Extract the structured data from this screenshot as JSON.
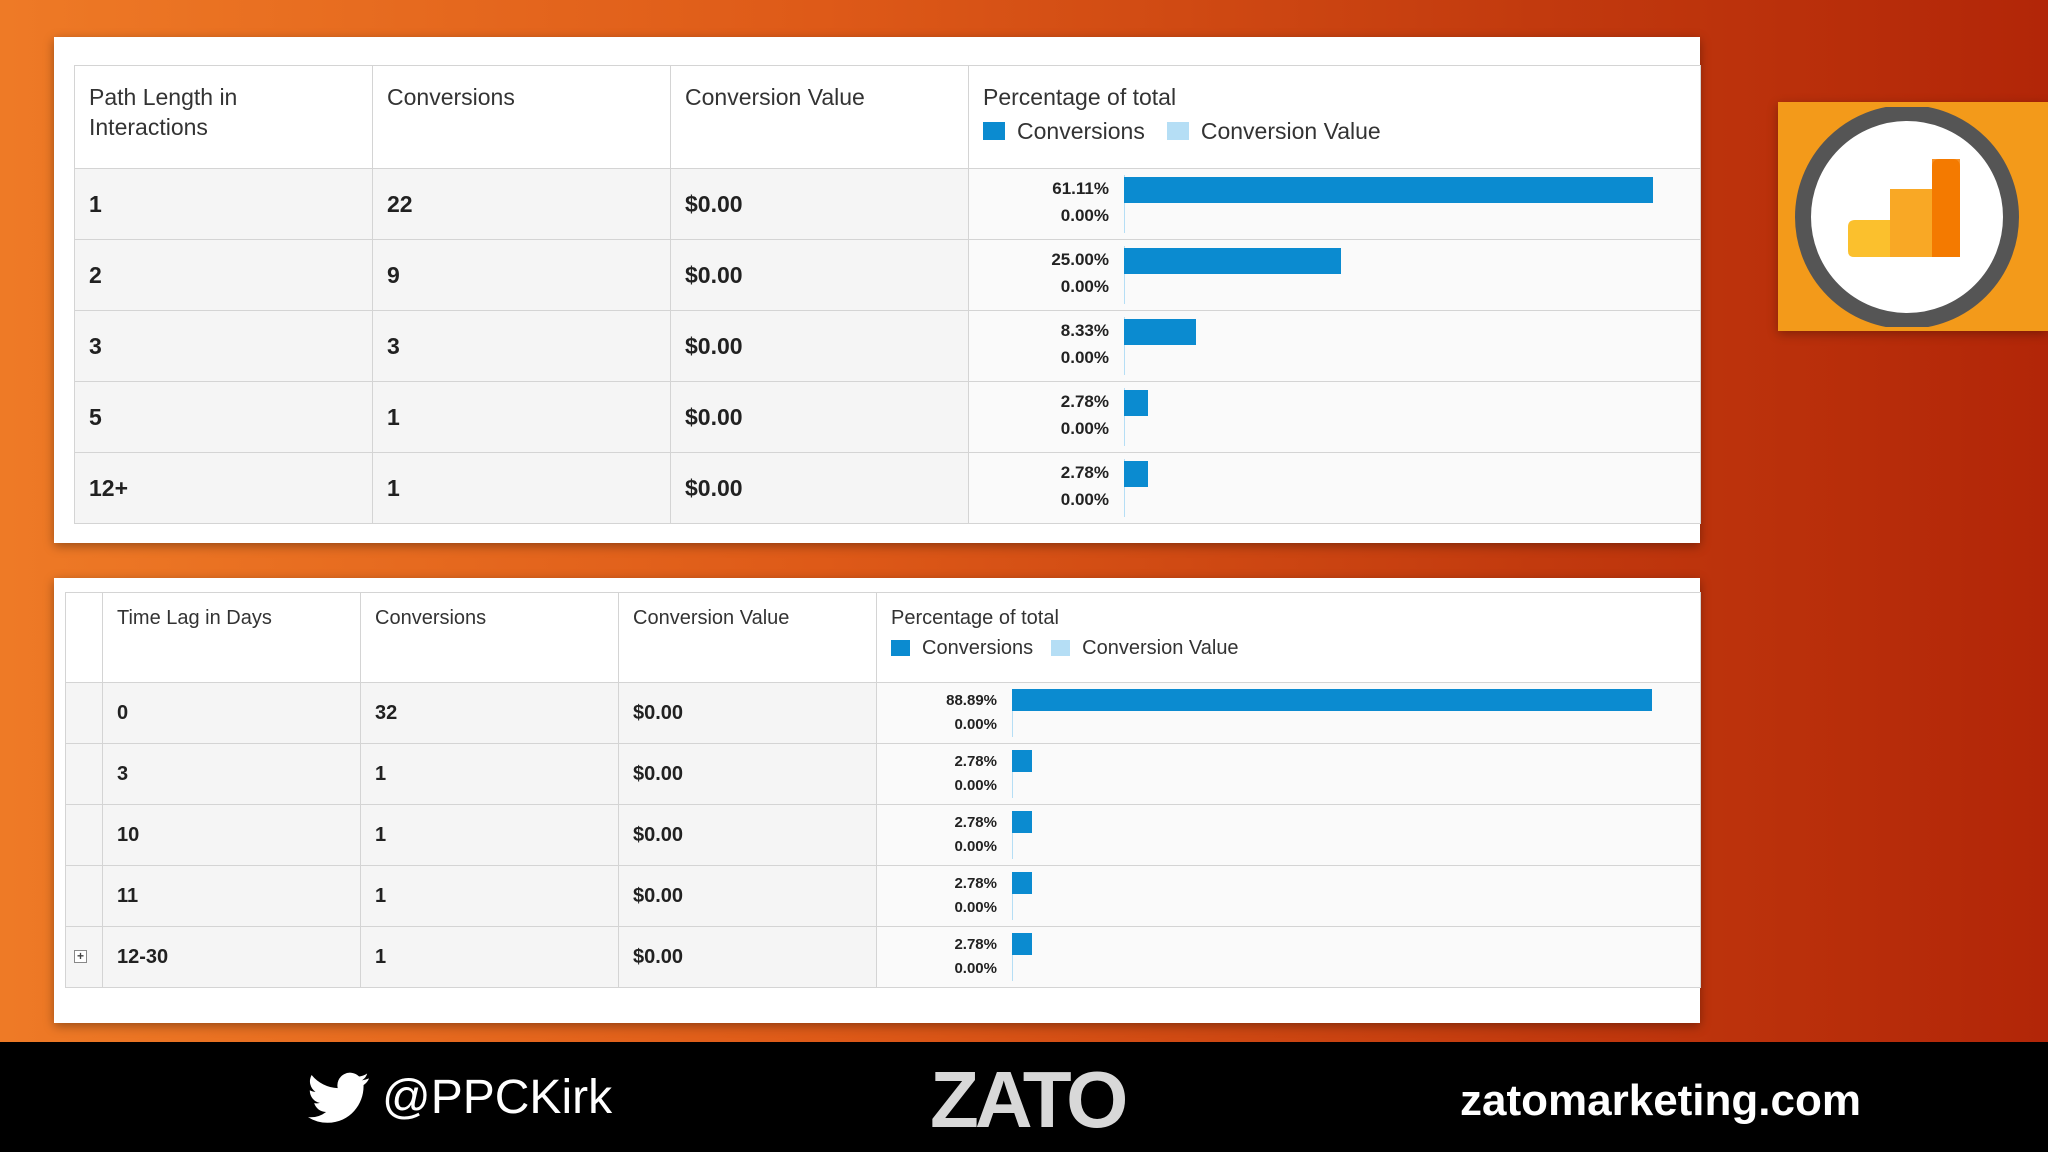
{
  "path_table": {
    "headers": {
      "col1": "Path Length in Interactions",
      "col2": "Conversions",
      "col3": "Conversion Value",
      "col4": "Percentage of total"
    },
    "legend": {
      "conversions": "Conversions",
      "value": "Conversion Value"
    },
    "rows": [
      {
        "label": "1",
        "conversions": "22",
        "value": "$0.00",
        "pct_conv": "61.11%",
        "pct_value": "0.00%",
        "conv_fraction": 0.6111
      },
      {
        "label": "2",
        "conversions": "9",
        "value": "$0.00",
        "pct_conv": "25.00%",
        "pct_value": "0.00%",
        "conv_fraction": 0.25
      },
      {
        "label": "3",
        "conversions": "3",
        "value": "$0.00",
        "pct_conv": "8.33%",
        "pct_value": "0.00%",
        "conv_fraction": 0.0833
      },
      {
        "label": "5",
        "conversions": "1",
        "value": "$0.00",
        "pct_conv": "2.78%",
        "pct_value": "0.00%",
        "conv_fraction": 0.0278
      },
      {
        "label": "12+",
        "conversions": "1",
        "value": "$0.00",
        "pct_conv": "2.78%",
        "pct_value": "0.00%",
        "conv_fraction": 0.0278
      }
    ]
  },
  "lag_table": {
    "headers": {
      "col1": "Time Lag in Days",
      "col2": "Conversions",
      "col3": "Conversion Value",
      "col4": "Percentage of total"
    },
    "legend": {
      "conversions": "Conversions",
      "value": "Conversion Value"
    },
    "rows": [
      {
        "label": "0",
        "conversions": "32",
        "value": "$0.00",
        "pct_conv": "88.89%",
        "pct_value": "0.00%",
        "conv_fraction": 0.8889
      },
      {
        "label": "3",
        "conversions": "1",
        "value": "$0.00",
        "pct_conv": "2.78%",
        "pct_value": "0.00%",
        "conv_fraction": 0.0278
      },
      {
        "label": "10",
        "conversions": "1",
        "value": "$0.00",
        "pct_conv": "2.78%",
        "pct_value": "0.00%",
        "conv_fraction": 0.0278
      },
      {
        "label": "11",
        "conversions": "1",
        "value": "$0.00",
        "pct_conv": "2.78%",
        "pct_value": "0.00%",
        "conv_fraction": 0.0278
      },
      {
        "label": "12-30",
        "conversions": "1",
        "value": "$0.00",
        "pct_conv": "2.78%",
        "pct_value": "0.00%",
        "conv_fraction": 0.0278,
        "expandable": true
      }
    ]
  },
  "colors": {
    "conversions_bar": "#0b8bd0",
    "value_bar": "#b5def5",
    "logo_bg": "#f39a1a"
  },
  "icons": {
    "logo": "google-analytics-icon",
    "twitter": "twitter-bird-icon",
    "expand": "plus-box-icon"
  },
  "footer": {
    "twitter_handle": "@PPCKirk",
    "brand": "ZATO",
    "website": "zatomarketing.com"
  }
}
